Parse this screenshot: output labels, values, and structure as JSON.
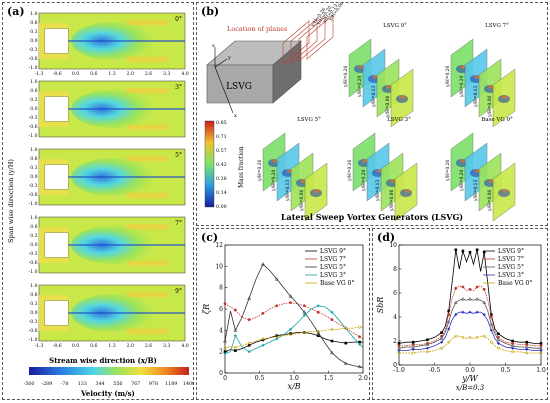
{
  "panel_a": {
    "label": "(a)",
    "y_ticks": [
      "1.0",
      "0.6",
      "0.3",
      "0.0",
      "-0.3",
      "-0.6",
      "-1.0"
    ],
    "x_ticks": [
      "-1.3",
      "-0.6",
      "0.0",
      "0.6",
      "1.3",
      "2.0",
      "2.6",
      "3.3",
      "4.0"
    ],
    "angles": [
      "0°",
      "3°",
      "5°",
      "7°",
      "9°"
    ],
    "ylabel": "Span wise direction (y/H)",
    "xlabel": "Stream wise direction (x/B)",
    "colorbar_ticks": [
      "-500",
      "-289",
      "-78",
      "133",
      "344",
      "556",
      "767",
      "978",
      "1189",
      "1400"
    ],
    "colorbar_label": "Velocity (m/s)"
  },
  "panel_b": {
    "label": "(b)",
    "location_label": "Location of planes",
    "plane_labels": [
      "y/H=0.26",
      "y/H=0.20",
      "y/H=0.13",
      "y/H=0.06"
    ],
    "solid_label": "LSVG",
    "axis_labels": [
      "z",
      "y",
      "x"
    ],
    "cases": [
      "LSVG 9°",
      "LSVG 7°",
      "LSVG 5°",
      "LSVG 3°",
      "Base VG 0°"
    ],
    "colorbar_ticks": [
      "0.85",
      "0.71",
      "0.57",
      "0.42",
      "0.28",
      "0.14",
      "0.00"
    ],
    "colorbar_label": "Mass fraction",
    "title": "Lateral Sweep Vortex Generators (LSVG)"
  },
  "panel_c": {
    "label": "(c)",
    "chart_data": {
      "type": "line",
      "ylabel": "ζR",
      "xlabel": "x/B",
      "xlim": [
        0,
        2.0
      ],
      "ylim": [
        0,
        12
      ],
      "x_ticks": [
        "0",
        "0.5",
        "1.0",
        "1.5",
        "2.0"
      ],
      "y_ticks": [
        "0",
        "2",
        "4",
        "6",
        "8",
        "10",
        "12"
      ],
      "legend": "top-right",
      "series": [
        {
          "name": "LSVG 9°",
          "color": "#000000",
          "marker": "square",
          "x": [
            0,
            0.08,
            0.15,
            0.25,
            0.35,
            0.45,
            0.55,
            0.65,
            0.75,
            0.85,
            0.95,
            1.05,
            1.15,
            1.25,
            1.35,
            1.45,
            1.55,
            1.65,
            1.75,
            1.85,
            1.95,
            2.0
          ],
          "y": [
            2.0,
            2.2,
            2.1,
            2.3,
            2.6,
            2.9,
            3.1,
            3.3,
            3.5,
            3.6,
            3.7,
            3.8,
            3.8,
            3.7,
            3.5,
            3.2,
            3.0,
            2.9,
            2.8,
            2.9,
            2.9,
            2.9
          ]
        },
        {
          "name": "LSVG 7°",
          "color": "#c0392b",
          "marker": "circle",
          "x": [
            0,
            0.08,
            0.15,
            0.25,
            0.35,
            0.45,
            0.55,
            0.65,
            0.75,
            0.85,
            0.95,
            1.05,
            1.15,
            1.25,
            1.35,
            1.45,
            1.55,
            1.65,
            1.75,
            1.85,
            1.95,
            2.0
          ],
          "y": [
            6.5,
            6.2,
            5.9,
            5.2,
            5.0,
            5.2,
            5.6,
            6.0,
            6.3,
            6.5,
            6.6,
            6.5,
            6.3,
            6.0,
            5.7,
            5.4,
            5.0,
            4.6,
            4.2,
            3.8,
            3.4,
            3.2
          ]
        },
        {
          "name": "LSVG 5°",
          "color": "#333333",
          "marker": "triangle",
          "x": [
            0,
            0.08,
            0.15,
            0.25,
            0.35,
            0.45,
            0.55,
            0.65,
            0.75,
            0.85,
            0.95,
            1.05,
            1.15,
            1.25,
            1.35,
            1.45,
            1.55,
            1.65,
            1.75,
            1.85,
            1.95,
            2.0
          ],
          "y": [
            3.0,
            5.8,
            4.0,
            5.3,
            7.0,
            8.8,
            10.2,
            9.6,
            8.8,
            8.0,
            7.2,
            6.5,
            5.7,
            4.8,
            3.8,
            2.8,
            1.9,
            1.3,
            0.9,
            0.7,
            0.6,
            0.5
          ]
        },
        {
          "name": "LSVG 3°",
          "color": "#17a2a2",
          "marker": "diamond",
          "x": [
            0,
            0.08,
            0.15,
            0.25,
            0.35,
            0.45,
            0.55,
            0.65,
            0.75,
            0.85,
            0.95,
            1.05,
            1.15,
            1.25,
            1.35,
            1.45,
            1.55,
            1.65,
            1.75,
            1.85,
            1.95,
            2.0
          ],
          "y": [
            1.8,
            2.0,
            3.5,
            2.4,
            2.0,
            2.3,
            2.6,
            2.9,
            3.2,
            3.6,
            4.1,
            4.7,
            5.4,
            6.0,
            6.3,
            6.2,
            5.7,
            5.0,
            4.2,
            3.4,
            2.7,
            2.4
          ]
        },
        {
          "name": "Base VG 0°",
          "color": "#c8a200",
          "marker": "star",
          "x": [
            0,
            0.08,
            0.15,
            0.25,
            0.35,
            0.45,
            0.55,
            0.65,
            0.75,
            0.85,
            0.95,
            1.05,
            1.15,
            1.25,
            1.35,
            1.45,
            1.55,
            1.65,
            1.75,
            1.85,
            1.95,
            2.0
          ],
          "y": [
            2.3,
            2.5,
            2.4,
            2.6,
            2.8,
            3.0,
            3.2,
            3.3,
            3.4,
            3.5,
            3.6,
            3.7,
            3.8,
            3.9,
            3.9,
            4.0,
            4.1,
            4.1,
            4.2,
            4.2,
            4.3,
            4.3
          ]
        }
      ]
    }
  },
  "panel_d": {
    "label": "(d)",
    "chart_data": {
      "type": "line",
      "ylabel": "SbR",
      "xlabel": "y/W",
      "sublabel": "x/B=0.3",
      "xlim": [
        -1.0,
        1.0
      ],
      "ylim": [
        0,
        10
      ],
      "x_ticks": [
        "-1.0",
        "-0.5",
        "0.0",
        "0.5",
        "1.0"
      ],
      "y_ticks": [
        "0",
        "2",
        "4",
        "6",
        "8",
        "10"
      ],
      "legend": "top-right",
      "series": [
        {
          "name": "LSVG 9°",
          "color": "#000000",
          "marker": "square",
          "x": [
            -1.0,
            -0.9,
            -0.8,
            -0.7,
            -0.6,
            -0.5,
            -0.4,
            -0.35,
            -0.3,
            -0.25,
            -0.2,
            -0.15,
            -0.1,
            -0.05,
            0,
            0.05,
            0.1,
            0.15,
            0.2,
            0.25,
            0.3,
            0.35,
            0.4,
            0.5,
            0.6,
            0.7,
            0.8,
            0.9,
            1.0
          ],
          "y": [
            1.8,
            1.9,
            1.9,
            2.0,
            2.1,
            2.3,
            2.7,
            3.2,
            4.5,
            7.0,
            9.6,
            8.0,
            9.5,
            8.6,
            9.4,
            8.4,
            9.6,
            7.8,
            9.4,
            6.8,
            4.2,
            3.0,
            2.6,
            2.2,
            2.0,
            1.9,
            1.9,
            1.8,
            1.8
          ]
        },
        {
          "name": "LSVG 7°",
          "color": "#c0392b",
          "marker": "circle",
          "x": [
            -1.0,
            -0.9,
            -0.8,
            -0.7,
            -0.6,
            -0.5,
            -0.4,
            -0.35,
            -0.3,
            -0.25,
            -0.2,
            -0.15,
            -0.1,
            -0.05,
            0,
            0.05,
            0.1,
            0.15,
            0.2,
            0.25,
            0.3,
            0.35,
            0.4,
            0.5,
            0.6,
            0.7,
            0.8,
            0.9,
            1.0
          ],
          "y": [
            1.6,
            1.6,
            1.7,
            1.7,
            1.8,
            2.0,
            2.4,
            2.9,
            4.2,
            5.6,
            6.4,
            6.6,
            6.5,
            6.2,
            6.3,
            6.2,
            6.5,
            6.6,
            6.3,
            5.4,
            4.0,
            2.8,
            2.3,
            1.9,
            1.8,
            1.7,
            1.7,
            1.6,
            1.6
          ]
        },
        {
          "name": "LSVG 5°",
          "color": "#555555",
          "marker": "triangle",
          "x": [
            -1.0,
            -0.9,
            -0.8,
            -0.7,
            -0.6,
            -0.5,
            -0.4,
            -0.35,
            -0.3,
            -0.25,
            -0.2,
            -0.15,
            -0.1,
            -0.05,
            0,
            0.05,
            0.1,
            0.15,
            0.2,
            0.25,
            0.3,
            0.35,
            0.4,
            0.5,
            0.6,
            0.7,
            0.8,
            0.9,
            1.0
          ],
          "y": [
            1.4,
            1.5,
            1.5,
            1.6,
            1.7,
            1.9,
            2.2,
            2.7,
            3.6,
            4.6,
            5.2,
            5.4,
            5.5,
            5.4,
            5.5,
            5.4,
            5.5,
            5.4,
            5.2,
            4.5,
            3.4,
            2.6,
            2.1,
            1.8,
            1.6,
            1.5,
            1.5,
            1.4,
            1.4
          ]
        },
        {
          "name": "LSVG 3°",
          "color": "#3030c0",
          "marker": "diamond",
          "x": [
            -1.0,
            -0.9,
            -0.8,
            -0.7,
            -0.6,
            -0.5,
            -0.4,
            -0.35,
            -0.3,
            -0.25,
            -0.2,
            -0.15,
            -0.1,
            -0.05,
            0,
            0.05,
            0.1,
            0.15,
            0.2,
            0.25,
            0.3,
            0.35,
            0.4,
            0.5,
            0.6,
            0.7,
            0.8,
            0.9,
            1.0
          ],
          "y": [
            1.2,
            1.2,
            1.3,
            1.3,
            1.4,
            1.6,
            1.9,
            2.3,
            3.0,
            3.8,
            4.2,
            4.4,
            4.4,
            4.3,
            4.4,
            4.3,
            4.4,
            4.4,
            4.2,
            3.7,
            2.9,
            2.2,
            1.8,
            1.5,
            1.4,
            1.3,
            1.3,
            1.2,
            1.2
          ]
        },
        {
          "name": "Base VG 0°",
          "color": "#c8a200",
          "marker": "star",
          "x": [
            -1.0,
            -0.9,
            -0.8,
            -0.7,
            -0.6,
            -0.5,
            -0.4,
            -0.35,
            -0.3,
            -0.25,
            -0.2,
            -0.15,
            -0.1,
            -0.05,
            0,
            0.05,
            0.1,
            0.15,
            0.2,
            0.25,
            0.3,
            0.35,
            0.4,
            0.5,
            0.6,
            0.7,
            0.8,
            0.9,
            1.0
          ],
          "y": [
            1.0,
            1.0,
            1.0,
            1.1,
            1.1,
            1.2,
            1.4,
            1.6,
            1.9,
            2.2,
            2.4,
            2.4,
            2.3,
            2.2,
            2.3,
            2.2,
            2.3,
            2.4,
            2.4,
            2.2,
            1.9,
            1.6,
            1.4,
            1.2,
            1.1,
            1.1,
            1.0,
            1.0,
            1.0
          ]
        }
      ]
    }
  }
}
